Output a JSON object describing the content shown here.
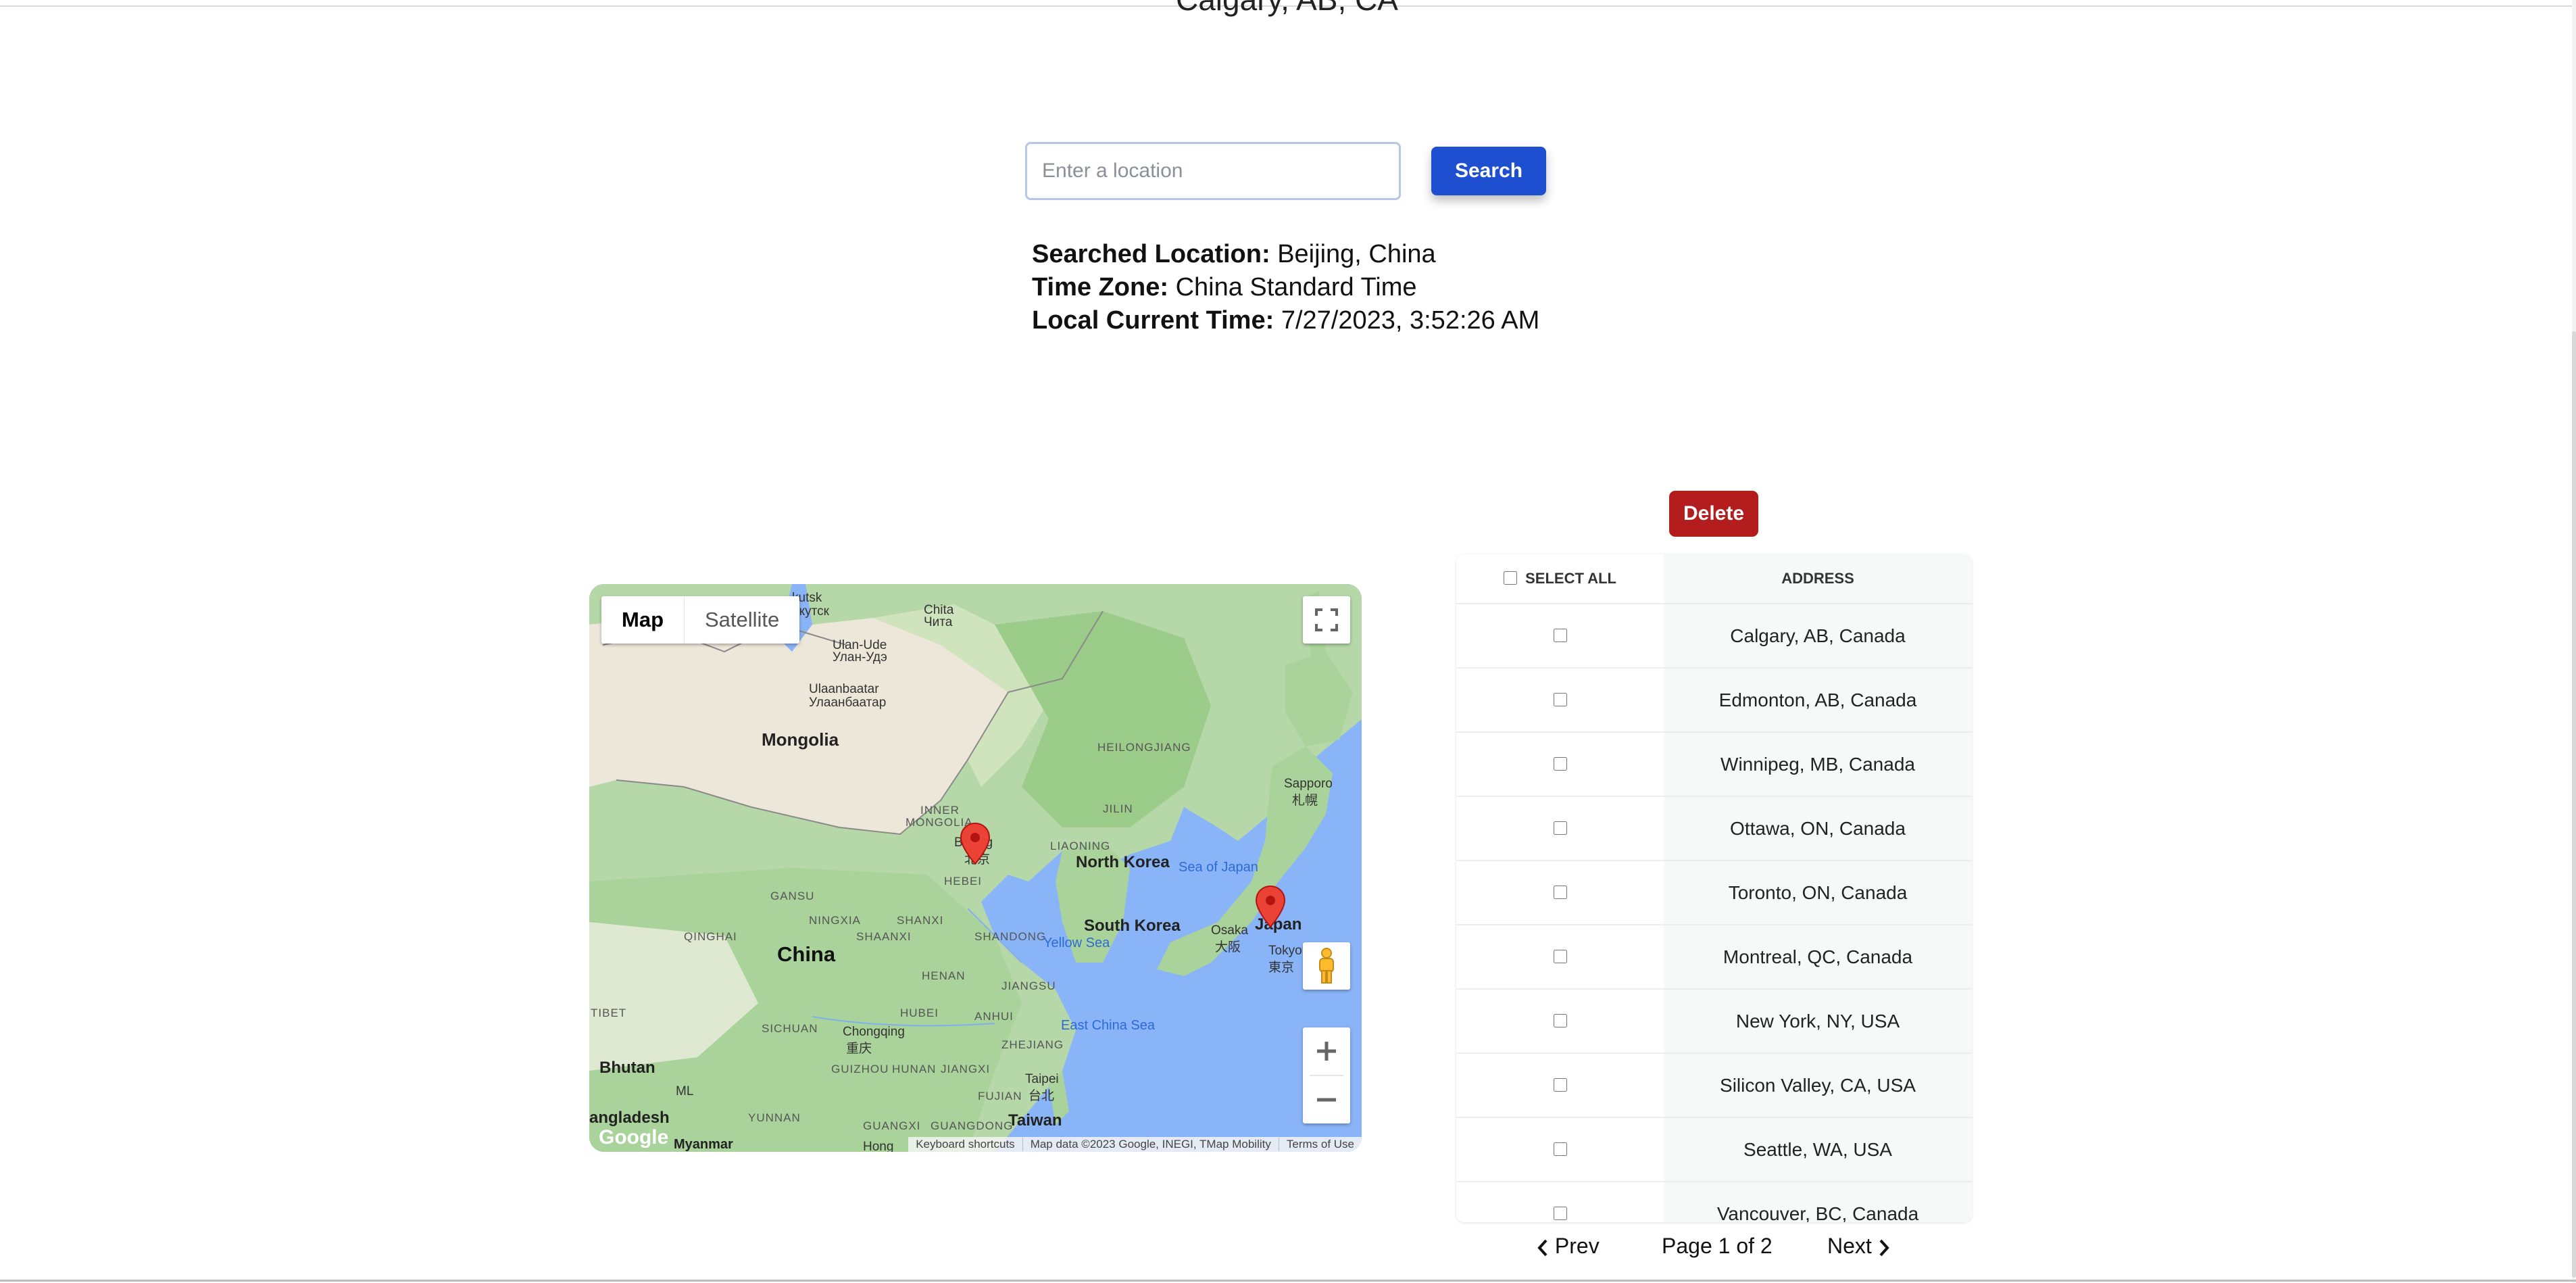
{
  "header": {
    "city": "Calgary, AB, CA"
  },
  "search": {
    "placeholder": "Enter a location",
    "button_label": "Search"
  },
  "result": {
    "location_label": "Searched Location:",
    "location_value": "Beijing, China",
    "timezone_label": "Time Zone:",
    "timezone_value": "China Standard Time",
    "time_label": "Local Current Time:",
    "time_value": "7/27/2023, 3:52:26 AM"
  },
  "actions": {
    "delete_label": "Delete"
  },
  "map": {
    "type_map": "Map",
    "type_satellite": "Satellite",
    "attribution": {
      "shortcuts": "Keyboard shortcuts",
      "data": "Map data ©2023 Google, INEGI, TMap Mobility",
      "terms": "Terms of Use"
    },
    "logo": "Google",
    "labels": {
      "irkutsk": "kutsk",
      "irkutsk_ru": "ркутск",
      "chita": "Chita",
      "chita_ru": "Чита",
      "ulan_ude": "Ulan-Ude",
      "ulan_ude_ru": "Улан-Удэ",
      "ulaanbaatar": "Ulaanbaatar",
      "ulaanbaatar_ru": "Улаанбаатар",
      "mongolia": "Mongolia",
      "heilongjiang": "HEILONGJIANG",
      "sapporo": "Sapporo",
      "sapporo_jp": "札幌",
      "jilin": "JILIN",
      "inner_mongolia_1": "INNER",
      "inner_mongolia_2": "MONGOLIA",
      "beijing": "Beijing",
      "beijing_cn": "北京",
      "liaoning": "LIAONING",
      "north_korea": "North Korea",
      "sea_of_japan": "Sea of Japan",
      "hebei": "HEBEI",
      "gansu": "GANSU",
      "shanxi": "SHANXI",
      "ningxia": "NINGXIA",
      "shaanxi": "SHAANXI",
      "south_korea": "South Korea",
      "shandong": "SHANDONG",
      "osaka": "Osaka",
      "osaka_jp": "大阪",
      "japan": "Japan",
      "tokyo": "Tokyo",
      "tokyo_jp": "東京",
      "qinghai": "QINGHAI",
      "china": "China",
      "yellow_sea": "Yellow Sea",
      "henan": "HENAN",
      "jiangsu": "JIANGSU",
      "tibet": "TIBET",
      "hubei": "HUBEI",
      "anhui": "ANHUI",
      "east_china_sea": "East China Sea",
      "sichuan": "SICHUAN",
      "chongqing": "Chongqing",
      "chongqing_cn": "重庆",
      "zhejiang": "ZHEJIANG",
      "bhutan": "Bhutan",
      "guizhou": "GUIZHOU",
      "hunan": "HUNAN",
      "jiangxi": "JIANGXI",
      "taipei": "Taipei",
      "taipei_cn": "台北",
      "fujian": "FUJIAN",
      "ml": "ML",
      "yunnan": "YUNNAN",
      "bangladesh": "angladesh",
      "guangxi": "GUANGXI",
      "guangdong": "GUANGDONG",
      "taiwan": "Taiwan",
      "myanmar": "Myanmar",
      "hong": "Hong"
    }
  },
  "table": {
    "select_all_label": "SELECT ALL",
    "address_header": "ADDRESS",
    "rows": [
      "Calgary, AB, Canada",
      "Edmonton, AB, Canada",
      "Winnipeg, MB, Canada",
      "Ottawa, ON, Canada",
      "Toronto, ON, Canada",
      "Montreal, QC, Canada",
      "New York, NY, USA",
      "Silicon Valley, CA, USA",
      "Seattle, WA, USA",
      "Vancouver, BC, Canada"
    ]
  },
  "pagination": {
    "prev_label": "Prev",
    "page_info": "Page 1 of 2",
    "next_label": "Next"
  },
  "colors": {
    "primary": "#1f4fd1",
    "danger": "#b31d1d",
    "marker": "#ea4335"
  }
}
